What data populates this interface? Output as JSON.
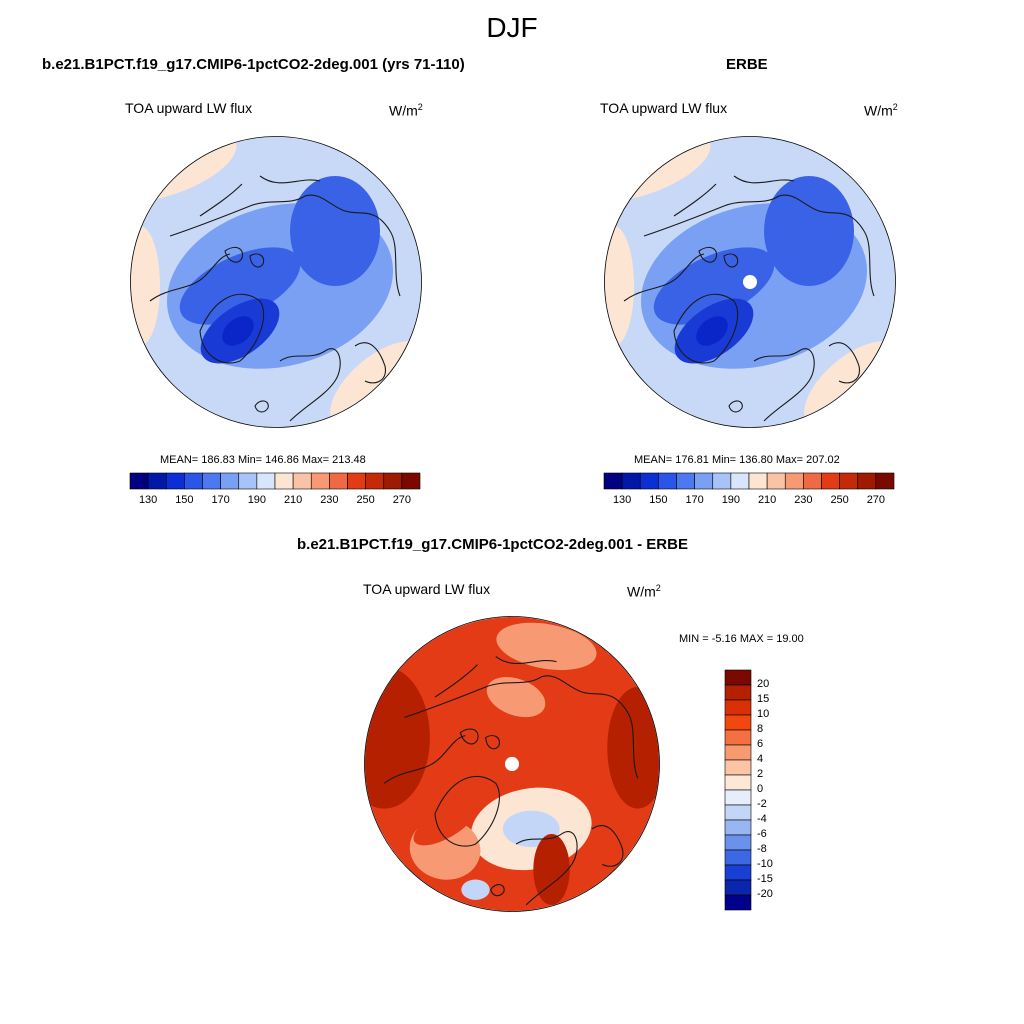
{
  "figure": {
    "season": "DJF",
    "panels": [
      {
        "title": "b.e21.B1PCT.f19_g17.CMIP6-1pctCO2-2deg.001 (yrs 71-110)",
        "variable": "TOA upward LW flux",
        "units_base": "W/m",
        "units_exp": "2",
        "stats_text": "MEAN= 186.83  Min= 146.86  Max= 213.48",
        "mean": 186.83,
        "min": 146.86,
        "max": 213.48
      },
      {
        "title": "ERBE",
        "variable": "TOA upward LW flux",
        "units_base": "W/m",
        "units_exp": "2",
        "stats_text": "MEAN= 176.81  Min= 136.80  Max= 207.02",
        "mean": 176.81,
        "min": 136.8,
        "max": 207.02
      },
      {
        "title": "b.e21.B1PCT.f19_g17.CMIP6-1pctCO2-2deg.001 - ERBE",
        "variable": "TOA upward LW flux",
        "units_base": "W/m",
        "units_exp": "2",
        "stats_text": "MIN =  -5.16 MAX =  19.00",
        "min": -5.16,
        "max": 19.0
      }
    ]
  },
  "colorbars": {
    "abs": {
      "tick_labels": [
        "130",
        "150",
        "170",
        "190",
        "210",
        "230",
        "250",
        "270"
      ],
      "colors": [
        "#000080",
        "#0018a8",
        "#0a2fd4",
        "#2a55e8",
        "#4c78f0",
        "#7aa0f4",
        "#a8c3f7",
        "#d8e6fb",
        "#fde5d4",
        "#fbc3a6",
        "#f79a74",
        "#ef6a44",
        "#e23b16",
        "#c42a08",
        "#9e1a00",
        "#7a0a00"
      ]
    },
    "diff": {
      "labels": [
        "20",
        "15",
        "10",
        "8",
        "6",
        "4",
        "2",
        "0",
        "-2",
        "-4",
        "-6",
        "-8",
        "-10",
        "-15",
        "-20"
      ],
      "colors": [
        "#7a0a00",
        "#b42000",
        "#d93008",
        "#f24810",
        "#f57040",
        "#f89a70",
        "#fbc4a4",
        "#fde8d8",
        "#e6eefb",
        "#c4d6f7",
        "#98b6f2",
        "#6a92ec",
        "#3d68e4",
        "#1840d4",
        "#0a26ac",
        "#00008a"
      ]
    }
  },
  "map_colors": {
    "abs_fill_light": "#c8d9f8",
    "abs_fill_mid": "#7aa0f4",
    "abs_fill_dark": "#3a62e6",
    "abs_fill_darkest": "#1a3ad6",
    "abs_warm": "#fde5d4",
    "diff_base": "#e23b16",
    "diff_dark": "#b42000",
    "diff_light": "#f79a74",
    "diff_pale": "#fde5d4",
    "diff_blue": "#c4d6f7",
    "coast": "#1a1a1a"
  }
}
